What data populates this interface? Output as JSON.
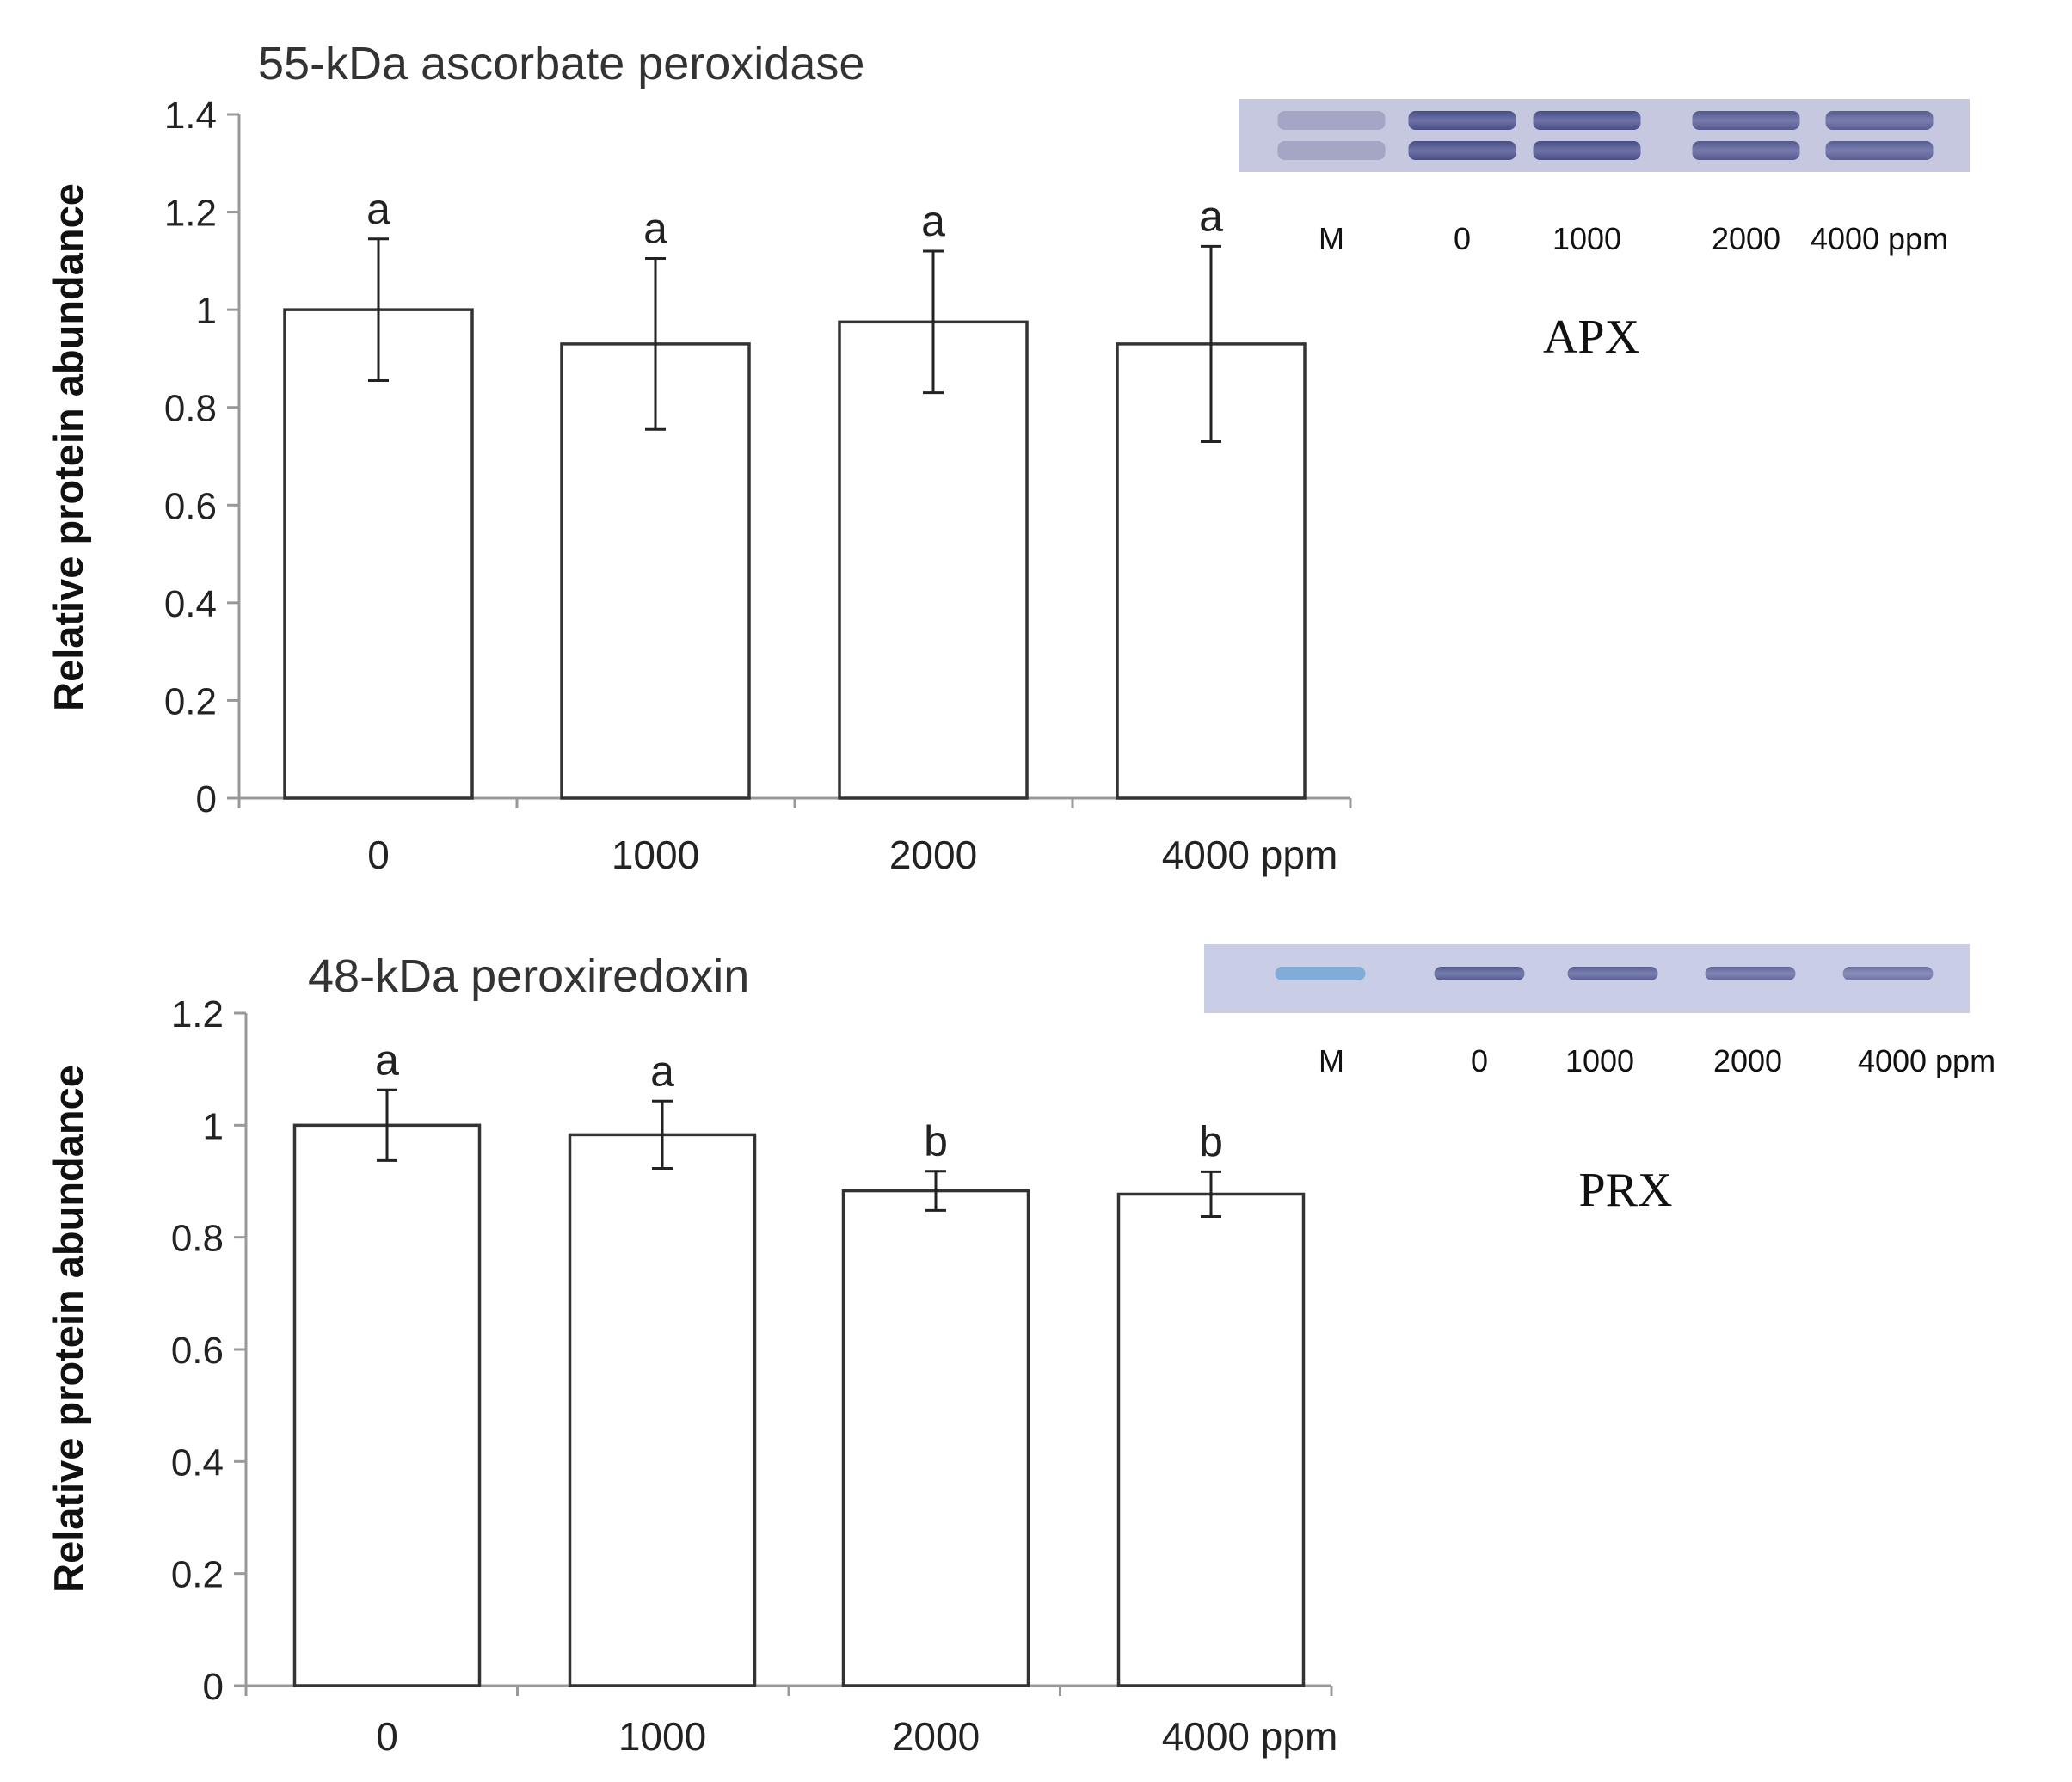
{
  "figure": {
    "panels": [
      {
        "id": "apx",
        "blot": {
          "lane_labels": [
            "M",
            "0",
            "1000",
            "2000",
            "4000 ppm"
          ],
          "caption": "APX",
          "lane_intensity": [
            0.15,
            1.0,
            1.0,
            0.85,
            0.8
          ]
        }
      },
      {
        "id": "prx",
        "blot": {
          "lane_labels": [
            "M",
            "0",
            "1000",
            "2000",
            "4000 ppm"
          ],
          "caption": "PRX",
          "lane_intensity": [
            0.5,
            0.85,
            0.8,
            0.7,
            0.55
          ]
        }
      }
    ]
  },
  "chart_data": [
    {
      "type": "bar",
      "title": "55-kDa ascorbate peroxidase",
      "xlabel": "",
      "ylabel": "Relative protein abundance",
      "categories": [
        "0",
        "1000",
        "2000",
        "4000 ppm"
      ],
      "values": [
        1.0,
        0.93,
        0.975,
        0.93
      ],
      "errors": [
        0.145,
        0.175,
        0.145,
        0.2
      ],
      "letters": [
        "a",
        "a",
        "a",
        "a"
      ],
      "ylim": [
        0,
        1.4
      ],
      "yticks": [
        "0",
        "0.2",
        "0.4",
        "0.6",
        "0.8",
        "1",
        "1.2",
        "1.4"
      ],
      "grid": false,
      "colors": {
        "bar_fill": "#ffffff",
        "bar_stroke": "#333333",
        "axis": "#999999",
        "text": "#222222"
      }
    },
    {
      "type": "bar",
      "title": "48-kDa peroxiredoxin",
      "xlabel": "",
      "ylabel": "Relative protein abundance",
      "categories": [
        "0",
        "1000",
        "2000",
        "4000 ppm"
      ],
      "values": [
        1.0,
        0.983,
        0.883,
        0.877
      ],
      "errors": [
        0.063,
        0.06,
        0.035,
        0.04
      ],
      "letters": [
        "a",
        "a",
        "b",
        "b"
      ],
      "ylim": [
        0,
        1.2
      ],
      "yticks": [
        "0",
        "0.2",
        "0.4",
        "0.6",
        "0.8",
        "1",
        "1.2"
      ],
      "grid": false,
      "colors": {
        "bar_fill": "#ffffff",
        "bar_stroke": "#333333",
        "axis": "#999999",
        "text": "#222222"
      }
    }
  ]
}
